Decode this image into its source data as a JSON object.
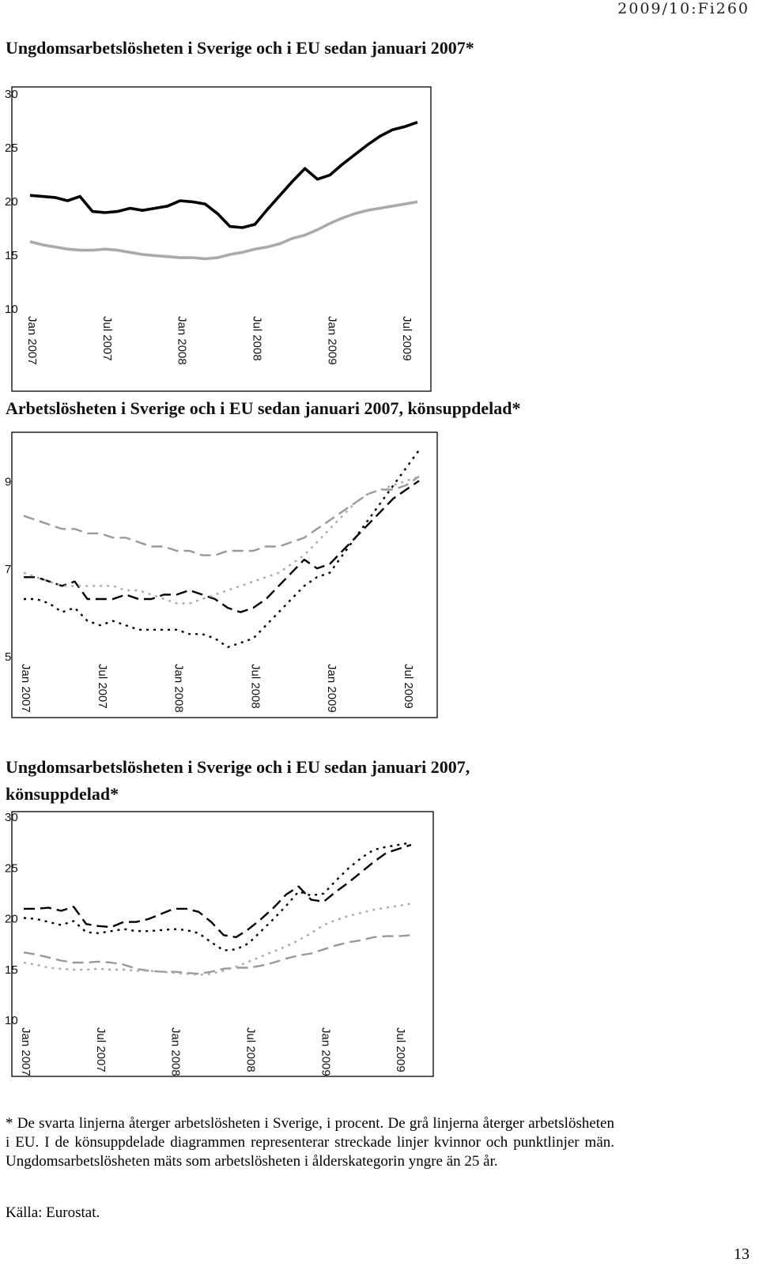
{
  "document_id": "2009/10:Fi260",
  "page_number": "13",
  "footnote": "* De svarta linjerna återger arbetslösheten i Sverige, i procent. De grå linjerna återger arbetslösheten i EU. I de könsuppdelade diagrammen representerar streckade linjer kvinnor och punktlinjer män. Ungdomsarbetslösheten mäts som arbetslösheten i ålderskategorin yngre än 25 år.",
  "source": "Källa: Eurostat.",
  "colors": {
    "sweden": "#000000",
    "eu": "#aaaaaa"
  },
  "chart_data": [
    {
      "type": "line",
      "title": "Ungdomsarbetslösheten i Sverige och i EU sedan januari 2007*",
      "ylim": [
        10,
        30
      ],
      "yticks": [
        "10",
        "15",
        "20",
        "25",
        "30"
      ],
      "xtick_labels": [
        "Jan 2007",
        "Jul 2007",
        "Jan 2008",
        "Jul 2008",
        "Jan 2009",
        "Jul 2009"
      ],
      "series": [
        {
          "style": "solid",
          "color": "#000000",
          "values": [
            20.5,
            20.4,
            20.3,
            20.0,
            20.4,
            19.0,
            18.9,
            19.0,
            19.3,
            19.1,
            19.3,
            19.5,
            20.0,
            19.9,
            19.7,
            18.8,
            17.6,
            17.5,
            17.8,
            19.2,
            20.5,
            21.8,
            23.0,
            22.0,
            22.4,
            23.4,
            24.3,
            25.2,
            26.0,
            26.6,
            26.9,
            27.3
          ]
        },
        {
          "style": "solid",
          "color": "#aaaaaa",
          "values": [
            16.2,
            15.9,
            15.7,
            15.5,
            15.4,
            15.4,
            15.5,
            15.4,
            15.2,
            15.0,
            14.9,
            14.8,
            14.7,
            14.7,
            14.6,
            14.7,
            15.0,
            15.2,
            15.5,
            15.7,
            16.0,
            16.5,
            16.8,
            17.3,
            17.9,
            18.4,
            18.8,
            19.1,
            19.3,
            19.5,
            19.7,
            19.9
          ]
        }
      ]
    },
    {
      "type": "line",
      "title": "Arbetslösheten i Sverige och i EU sedan januari 2007, könsuppdelad*",
      "ylim": [
        5,
        10
      ],
      "yticks": [
        "5",
        "7",
        "9"
      ],
      "xtick_labels": [
        "Jan 2007",
        "Jul 2007",
        "Jan 2008",
        "Jul 2008",
        "Jan 2009",
        "Jul 2009"
      ],
      "series": [
        {
          "style": "dashed",
          "color": "#000000",
          "values": [
            6.8,
            6.8,
            6.7,
            6.6,
            6.7,
            6.3,
            6.3,
            6.3,
            6.4,
            6.3,
            6.3,
            6.4,
            6.4,
            6.5,
            6.4,
            6.3,
            6.1,
            6.0,
            6.1,
            6.3,
            6.6,
            6.9,
            7.2,
            7.0,
            7.1,
            7.4,
            7.7,
            8.0,
            8.3,
            8.6,
            8.8,
            9.0
          ]
        },
        {
          "style": "dotted",
          "color": "#000000",
          "values": [
            6.3,
            6.3,
            6.2,
            6.0,
            6.1,
            5.8,
            5.7,
            5.8,
            5.7,
            5.6,
            5.6,
            5.6,
            5.6,
            5.5,
            5.5,
            5.4,
            5.2,
            5.3,
            5.4,
            5.7,
            6.0,
            6.3,
            6.6,
            6.8,
            6.9,
            7.3,
            7.7,
            8.1,
            8.5,
            8.9,
            9.3,
            9.7
          ]
        },
        {
          "style": "dashed",
          "color": "#999999",
          "values": [
            8.2,
            8.1,
            8.0,
            7.9,
            7.9,
            7.8,
            7.8,
            7.7,
            7.7,
            7.6,
            7.5,
            7.5,
            7.4,
            7.4,
            7.3,
            7.3,
            7.4,
            7.4,
            7.4,
            7.5,
            7.5,
            7.6,
            7.7,
            7.9,
            8.1,
            8.3,
            8.5,
            8.7,
            8.8,
            8.8,
            8.9,
            9.1
          ]
        },
        {
          "style": "dotted",
          "color": "#aaaaaa",
          "values": [
            6.9,
            6.8,
            6.7,
            6.6,
            6.6,
            6.6,
            6.6,
            6.6,
            6.5,
            6.5,
            6.4,
            6.3,
            6.2,
            6.2,
            6.3,
            6.4,
            6.5,
            6.6,
            6.7,
            6.8,
            6.9,
            7.1,
            7.3,
            7.6,
            7.9,
            8.2,
            8.5,
            8.7,
            8.8,
            8.9,
            9.0,
            9.1
          ]
        }
      ]
    },
    {
      "type": "line",
      "title": "Ungdomsarbetslösheten i Sverige och i EU sedan januari 2007, könsuppdelad*",
      "ylim": [
        10,
        30
      ],
      "yticks": [
        "10",
        "15",
        "20",
        "25",
        "30"
      ],
      "xtick_labels": [
        "Jan 2007",
        "Jul 2007",
        "Jan 2008",
        "Jul 2008",
        "Jan 2009",
        "Jul 2009"
      ],
      "series": [
        {
          "style": "dashed",
          "color": "#000000",
          "values": [
            20.9,
            20.9,
            21.0,
            20.7,
            21.1,
            19.4,
            19.2,
            19.1,
            19.6,
            19.6,
            19.9,
            20.4,
            20.9,
            20.9,
            20.6,
            19.6,
            18.3,
            18.1,
            18.9,
            19.9,
            21.0,
            22.3,
            23.1,
            21.8,
            21.6,
            22.6,
            23.5,
            24.5,
            25.5,
            26.4,
            26.8,
            27.2
          ]
        },
        {
          "style": "dotted",
          "color": "#000000",
          "values": [
            20.0,
            19.9,
            19.6,
            19.3,
            19.7,
            18.6,
            18.5,
            18.7,
            18.9,
            18.7,
            18.7,
            18.8,
            18.9,
            18.8,
            18.5,
            17.6,
            16.8,
            16.9,
            17.5,
            18.7,
            19.9,
            21.2,
            22.6,
            22.2,
            22.4,
            23.7,
            24.9,
            25.9,
            26.7,
            27.0,
            27.2,
            27.4
          ]
        },
        {
          "style": "dashed",
          "color": "#999999",
          "values": [
            16.6,
            16.4,
            16.1,
            15.8,
            15.6,
            15.6,
            15.7,
            15.6,
            15.4,
            15.0,
            14.8,
            14.7,
            14.7,
            14.6,
            14.5,
            14.7,
            15.0,
            15.1,
            15.1,
            15.3,
            15.6,
            16.0,
            16.3,
            16.5,
            16.9,
            17.3,
            17.6,
            17.8,
            18.1,
            18.2,
            18.2,
            18.3
          ]
        },
        {
          "style": "dotted",
          "color": "#aaaaaa",
          "values": [
            15.6,
            15.4,
            15.1,
            15.0,
            14.9,
            14.9,
            15.0,
            14.9,
            14.9,
            14.8,
            14.8,
            14.7,
            14.6,
            14.5,
            14.4,
            14.5,
            14.8,
            15.2,
            15.7,
            16.2,
            16.7,
            17.2,
            17.8,
            18.5,
            19.3,
            19.8,
            20.2,
            20.5,
            20.8,
            21.0,
            21.2,
            21.4
          ]
        }
      ]
    }
  ]
}
